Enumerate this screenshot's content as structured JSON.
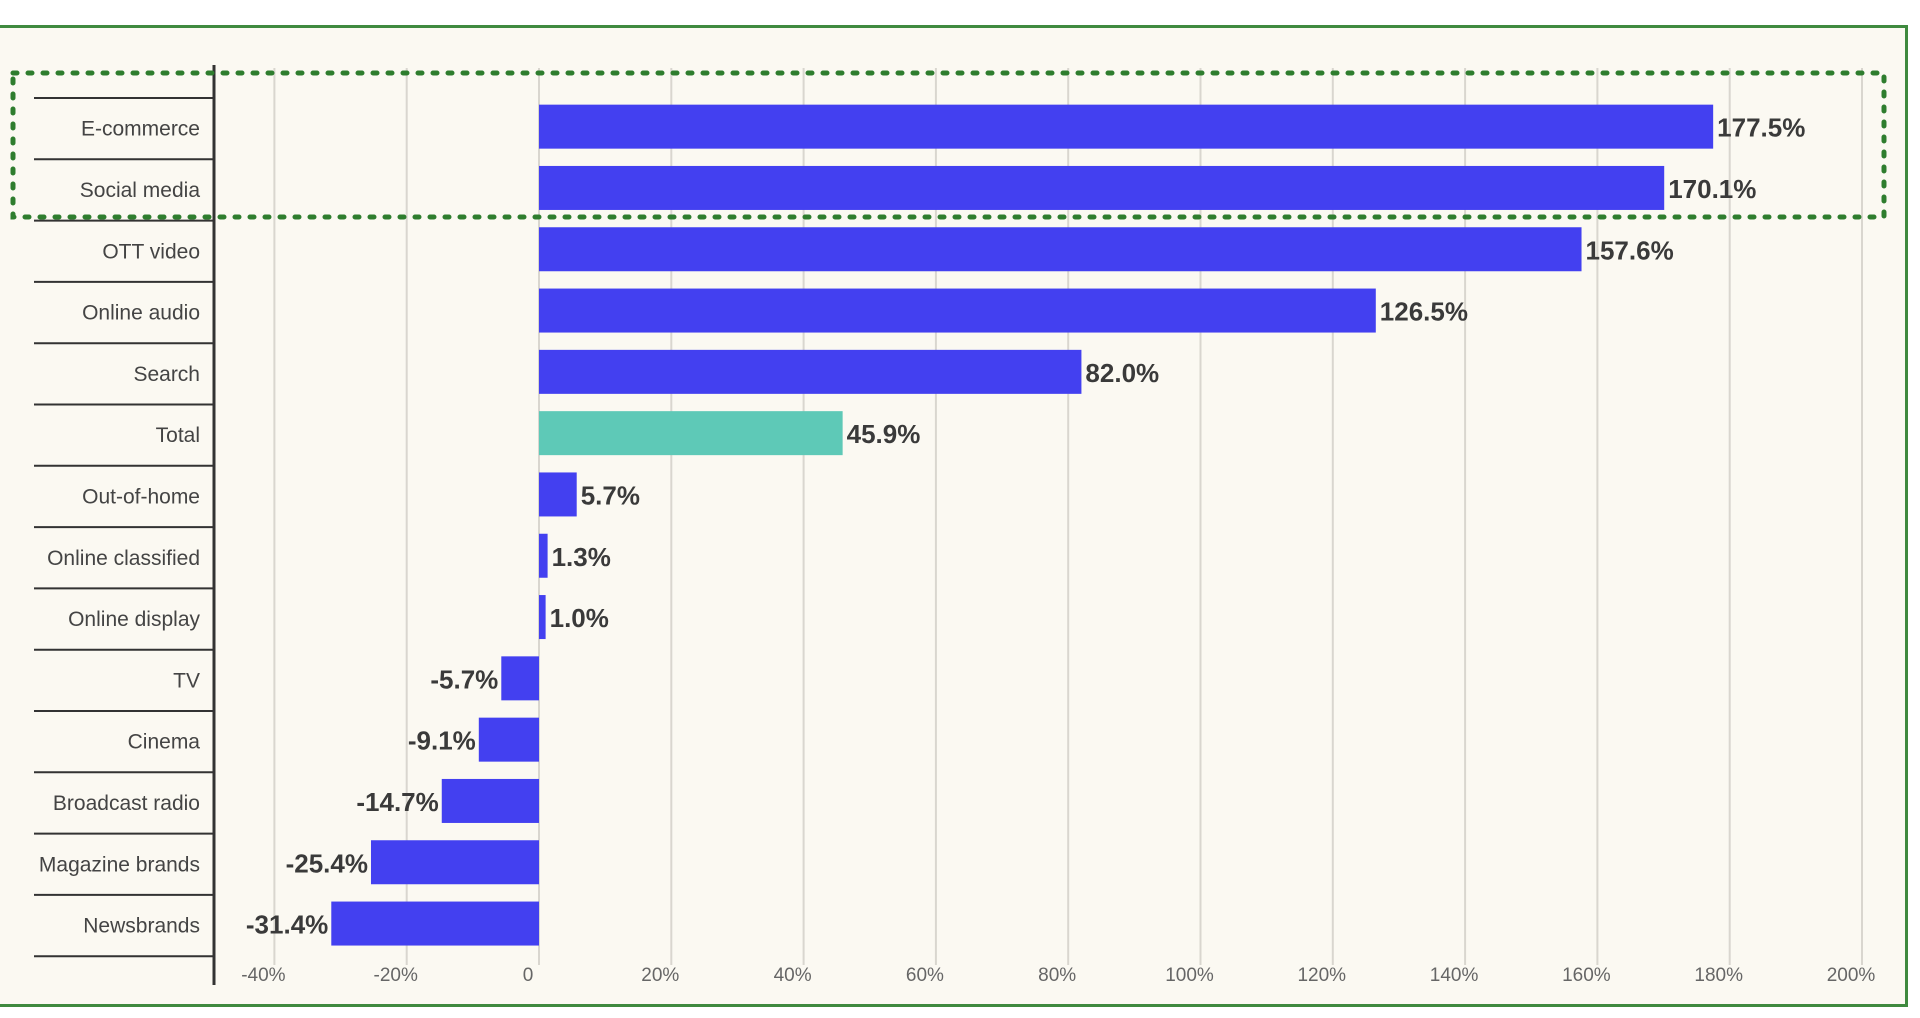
{
  "chart_data": {
    "type": "bar",
    "orientation": "horizontal",
    "categories": [
      "E-commerce",
      "Social media",
      "OTT video",
      "Online audio",
      "Search",
      "Total",
      "Out-of-home",
      "Online classified",
      "Online display",
      "TV",
      "Cinema",
      "Broadcast radio",
      "Magazine brands",
      "Newsbrands"
    ],
    "values": [
      177.5,
      170.1,
      157.6,
      126.5,
      82.0,
      45.9,
      5.7,
      1.3,
      1.0,
      -5.7,
      -9.1,
      -14.7,
      -25.4,
      -31.4
    ],
    "value_labels": [
      "177.5%",
      "170.1%",
      "157.6%",
      "126.5%",
      "82.0%",
      "45.9%",
      "5.7%",
      "1.3%",
      "1.0%",
      "-5.7%",
      "-9.1%",
      "-14.7%",
      "-25.4%",
      "-31.4%"
    ],
    "x_ticks": [
      -40,
      -20,
      0,
      20,
      40,
      60,
      80,
      100,
      120,
      140,
      160,
      180,
      200
    ],
    "x_tick_labels": [
      "-40%",
      "-20%",
      "0",
      "20%",
      "40%",
      "60%",
      "80%",
      "100%",
      "120%",
      "140%",
      "160%",
      "180%",
      "200%"
    ],
    "xlim": [
      -40,
      200
    ],
    "title": "",
    "xlabel": "",
    "ylabel": "",
    "grid": true,
    "bar_color": "#4340f0",
    "highlight_color": "#5ec9b7",
    "highlight_category": "Total",
    "highlight_box_categories": [
      "E-commerce",
      "Social media"
    ],
    "highlight_box_color": "#2e7d2e",
    "frame_color": "#3f8a3f"
  }
}
